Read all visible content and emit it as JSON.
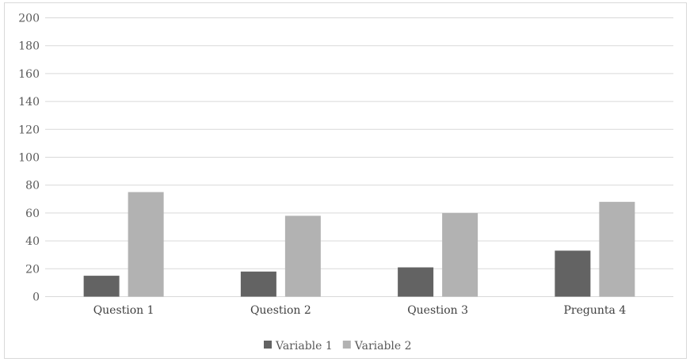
{
  "chart_data": {
    "type": "bar",
    "title": "",
    "xlabel": "",
    "ylabel": "",
    "categories": [
      "Question 1",
      "Question 2",
      "Question 3",
      "Pregunta 4"
    ],
    "series": [
      {
        "name": "Variable 1",
        "values": [
          15,
          18,
          21,
          33
        ],
        "color": "#636363"
      },
      {
        "name": "Variable 2",
        "values": [
          75,
          58,
          60,
          68
        ],
        "color": "#b2b2b2"
      }
    ],
    "ylim": [
      0,
      200
    ],
    "yticks": [
      0,
      20,
      40,
      60,
      80,
      100,
      120,
      140,
      160,
      180,
      200
    ],
    "grid": true,
    "legend_position": "bottom"
  }
}
